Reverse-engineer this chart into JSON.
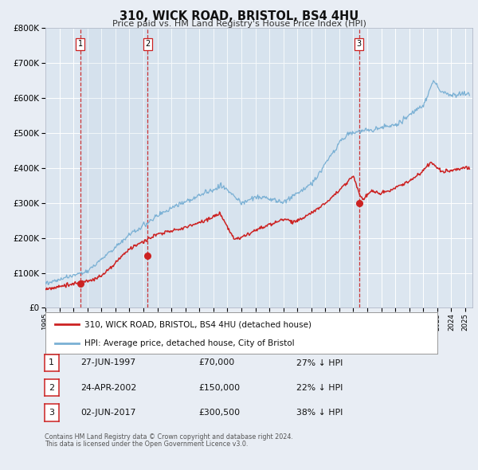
{
  "title": "310, WICK ROAD, BRISTOL, BS4 4HU",
  "subtitle": "Price paid vs. HM Land Registry's House Price Index (HPI)",
  "bg_color": "#e8edf4",
  "plot_bg_color": "#dce6f0",
  "grid_color": "#ffffff",
  "hpi_color": "#7ab0d4",
  "price_color": "#cc2222",
  "ylim": [
    0,
    800000
  ],
  "yticks": [
    0,
    100000,
    200000,
    300000,
    400000,
    500000,
    600000,
    700000,
    800000
  ],
  "xlim_start": 1995.0,
  "xlim_end": 2025.5,
  "sale_dates": [
    1997.49,
    2002.31,
    2017.42
  ],
  "sale_prices": [
    70000,
    150000,
    300500
  ],
  "sale_labels": [
    "1",
    "2",
    "3"
  ],
  "legend_price_label": "310, WICK ROAD, BRISTOL, BS4 4HU (detached house)",
  "legend_hpi_label": "HPI: Average price, detached house, City of Bristol",
  "table_rows": [
    {
      "num": "1",
      "date": "27-JUN-1997",
      "price": "£70,000",
      "pct": "27% ↓ HPI"
    },
    {
      "num": "2",
      "date": "24-APR-2002",
      "price": "£150,000",
      "pct": "22% ↓ HPI"
    },
    {
      "num": "3",
      "date": "02-JUN-2017",
      "price": "£300,500",
      "pct": "38% ↓ HPI"
    }
  ],
  "footnote1": "Contains HM Land Registry data © Crown copyright and database right 2024.",
  "footnote2": "This data is licensed under the Open Government Licence v3.0."
}
